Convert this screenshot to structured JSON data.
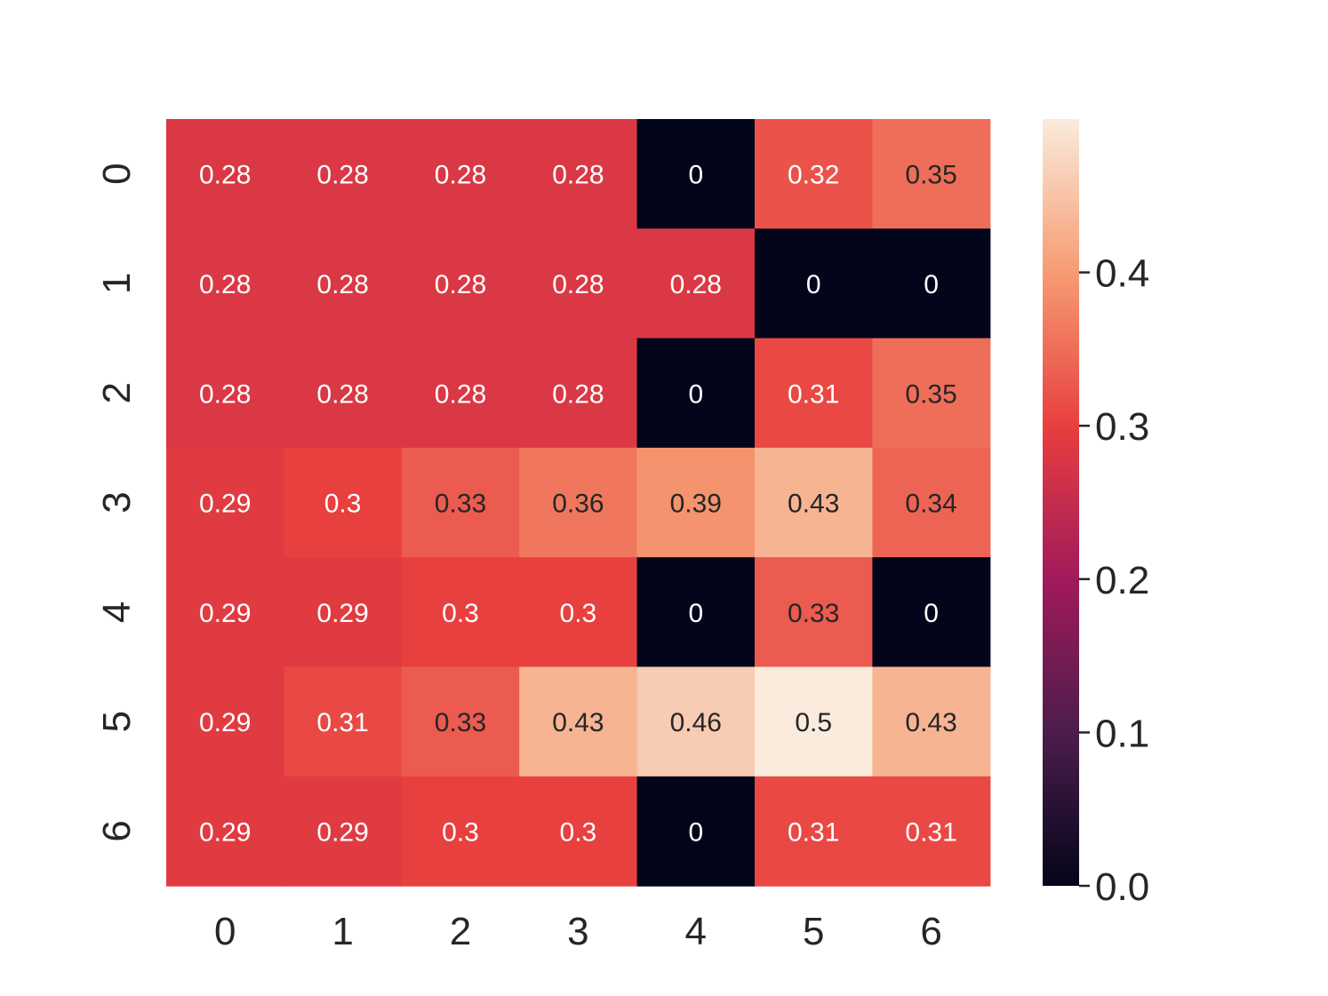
{
  "chart_data": {
    "type": "heatmap",
    "x_labels": [
      "0",
      "1",
      "2",
      "3",
      "4",
      "5",
      "6"
    ],
    "y_labels": [
      "0",
      "1",
      "2",
      "3",
      "4",
      "5",
      "6"
    ],
    "values": [
      [
        0.28,
        0.28,
        0.28,
        0.28,
        0,
        0.32,
        0.35
      ],
      [
        0.28,
        0.28,
        0.28,
        0.28,
        0.28,
        0,
        0
      ],
      [
        0.28,
        0.28,
        0.28,
        0.28,
        0,
        0.31,
        0.35
      ],
      [
        0.29,
        0.3,
        0.33,
        0.36,
        0.39,
        0.43,
        0.34
      ],
      [
        0.29,
        0.29,
        0.3,
        0.3,
        0,
        0.33,
        0
      ],
      [
        0.29,
        0.31,
        0.33,
        0.43,
        0.46,
        0.5,
        0.43
      ],
      [
        0.29,
        0.29,
        0.3,
        0.3,
        0,
        0.31,
        0.31
      ]
    ],
    "colorbar": {
      "range": [
        0,
        0.5
      ],
      "ticks": [
        0.0,
        0.1,
        0.2,
        0.3,
        0.4
      ],
      "tick_labels": [
        "0.0",
        "0.1",
        "0.2",
        "0.3",
        "0.4"
      ]
    },
    "colormap": "rocket",
    "colormap_stops": [
      "#03051a",
      "#4c1d4b",
      "#a11a5b",
      "#e83f3f",
      "#f69c73",
      "#faebdd"
    ],
    "annotation_dark_color": "#262626",
    "annotation_light_color": "#ffffff"
  }
}
